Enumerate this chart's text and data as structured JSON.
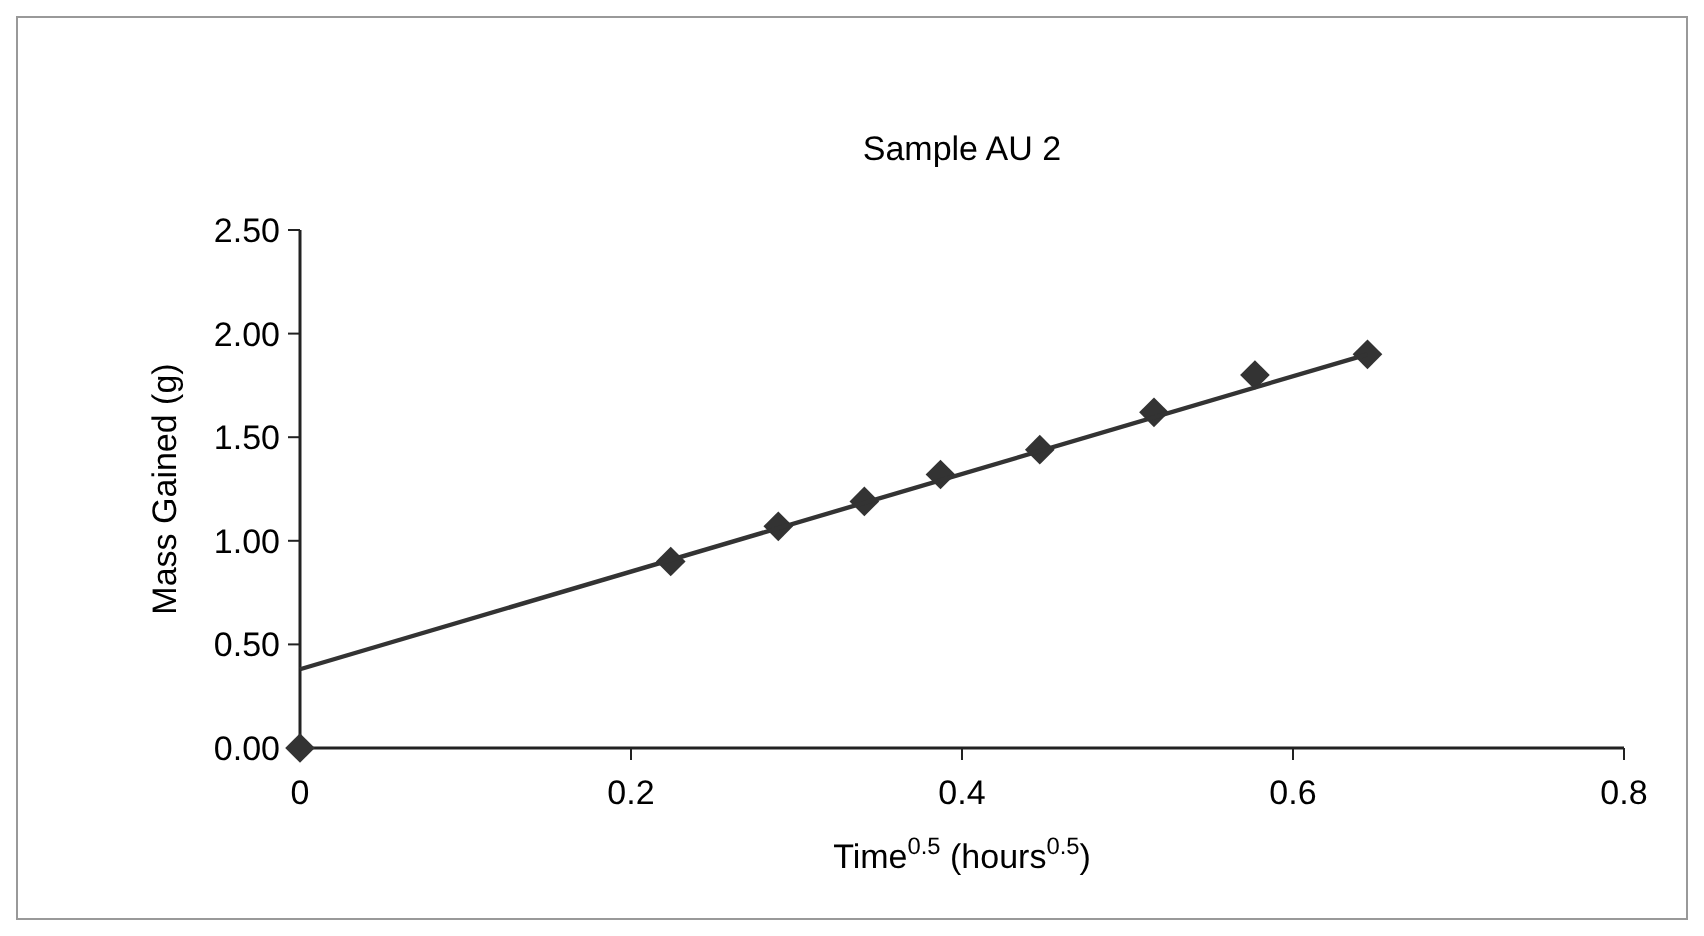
{
  "chart_data": {
    "type": "scatter",
    "title": "Sample AU 2",
    "xlabel": "Time$^{0.5}$ (hours$^{0.5}$)",
    "ylabel": "Mass Gained (g)",
    "xlim": [
      0,
      0.8
    ],
    "xticks": [
      {
        "value": 0,
        "label": "0"
      },
      0.2,
      0.4,
      0.6,
      0.8
    ],
    "ylim": [
      0,
      2.5
    ],
    "yticks": [
      {
        "value": 0,
        "label": "0.00"
      },
      {
        "value": 0.5,
        "label": "0.50"
      },
      {
        "value": 1,
        "label": "1.00"
      },
      {
        "value": 1.5,
        "label": "1.50"
      },
      {
        "value": 2,
        "label": "2.00"
      },
      {
        "value": 2.5,
        "label": "2.50"
      }
    ],
    "grid": false,
    "series": [
      {
        "marker": "diamond",
        "color": "#333333",
        "x": [
          0,
          0.224,
          0.289,
          0.341,
          0.387,
          0.447,
          0.516,
          0.577,
          0.645
        ],
        "values": [
          0,
          0.9,
          1.07,
          1.19,
          1.32,
          1.44,
          1.62,
          1.8,
          1.9
        ]
      },
      {
        "type": "line",
        "color": "#333333",
        "x": [
          0,
          0.645
        ],
        "values": [
          0.38,
          1.9
        ],
        "line_style": "solid"
      }
    ]
  }
}
